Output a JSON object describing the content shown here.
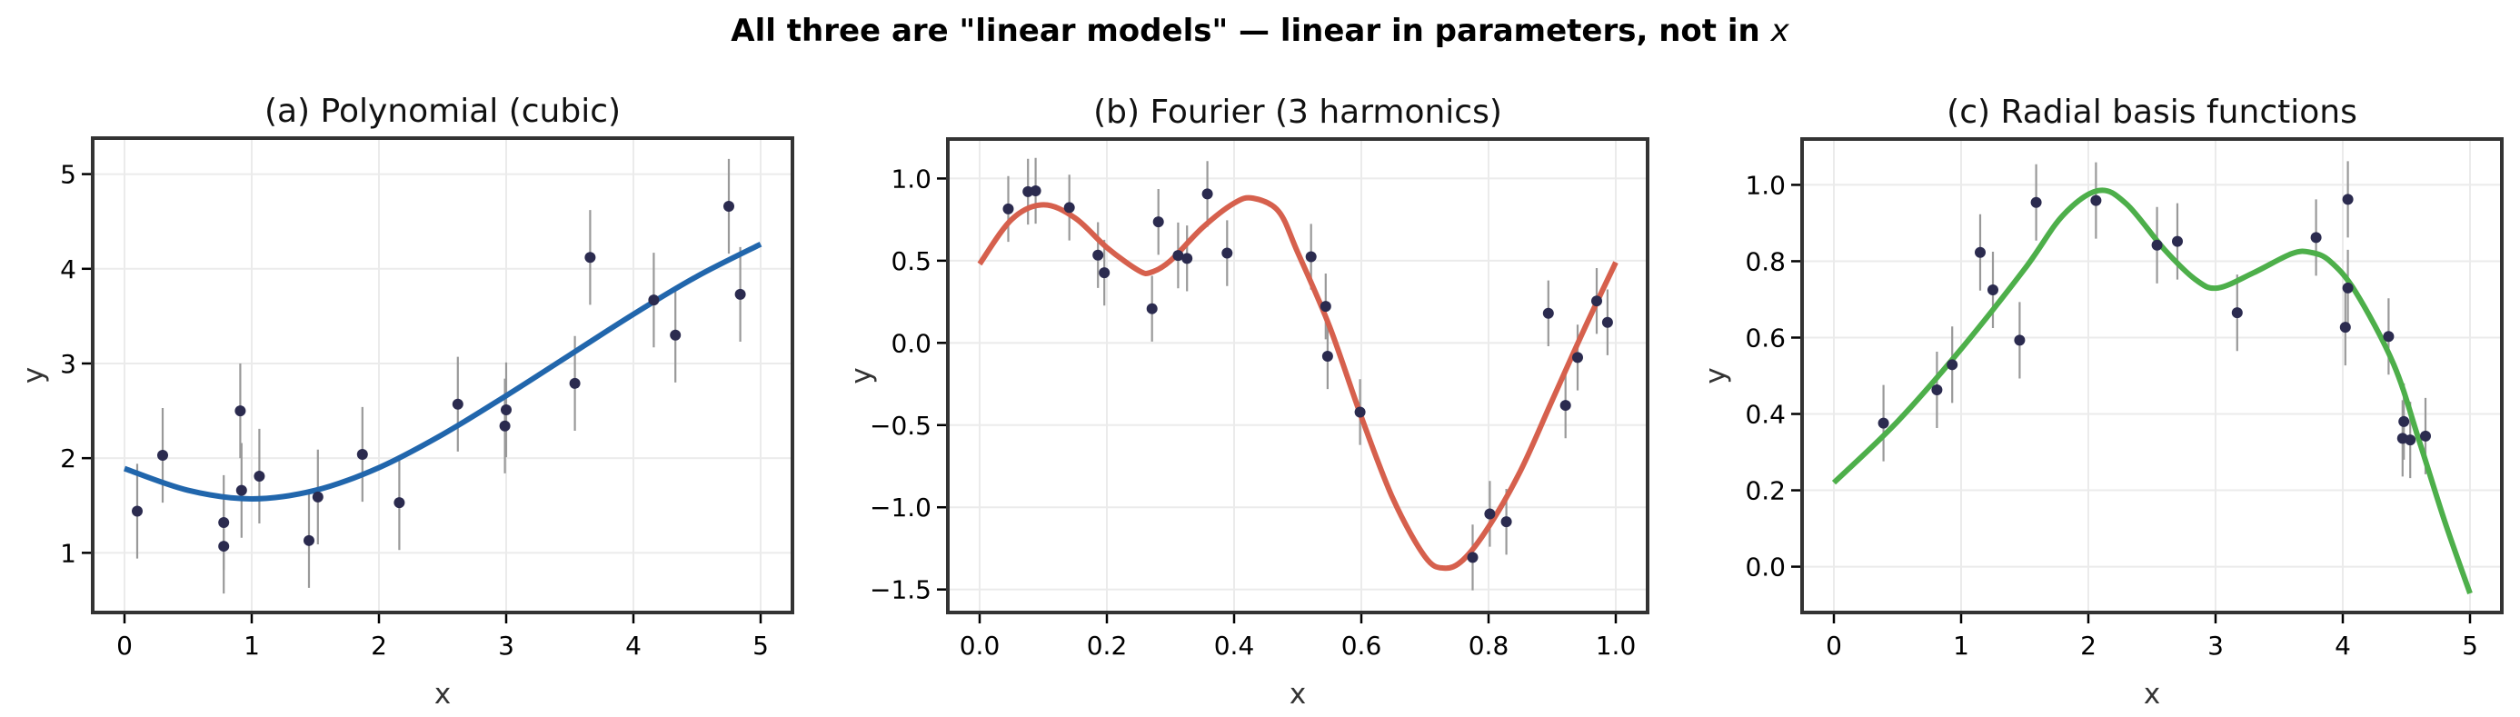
{
  "figure": {
    "suptitle_main": "All three are \"linear models\" — linear in parameters, not in ",
    "suptitle_var": "x",
    "point_color": "#2b2b4f",
    "errorbar_color": "#999999",
    "frame_color": "#333333",
    "grid_color": "#ebebeb"
  },
  "chart_data": [
    {
      "type": "scatter",
      "title": "(a) Polynomial (cubic)",
      "xlabel": "x",
      "ylabel": "y",
      "xlim": [
        -0.25,
        5.25
      ],
      "ylim": [
        0.37,
        5.38
      ],
      "xticks": [
        0,
        1,
        2,
        3,
        4,
        5
      ],
      "xticklabels": [
        "0",
        "1",
        "2",
        "3",
        "4",
        "5"
      ],
      "yticks": [
        1,
        2,
        3,
        4,
        5
      ],
      "yticklabels": [
        "1",
        "2",
        "3",
        "4",
        "5"
      ],
      "grid": true,
      "line_color": "#2166ac",
      "error": 0.5,
      "points": {
        "x": [
          0.1,
          0.3,
          0.78,
          0.78,
          0.91,
          0.92,
          1.06,
          1.45,
          1.52,
          1.87,
          2.16,
          2.62,
          2.99,
          3.0,
          3.54,
          3.66,
          4.16,
          4.33,
          4.75,
          4.84
        ],
        "y": [
          1.44,
          2.03,
          1.32,
          1.07,
          2.5,
          1.66,
          1.81,
          1.13,
          1.59,
          2.04,
          1.53,
          2.57,
          2.34,
          2.51,
          2.79,
          4.12,
          3.67,
          3.3,
          4.66,
          3.73
        ]
      },
      "fit_curve": {
        "x": [
          0,
          0.5,
          1,
          1.5,
          2,
          2.5,
          3,
          3.5,
          4,
          4.5,
          5
        ],
        "y": [
          1.89,
          1.66,
          1.57,
          1.66,
          1.9,
          2.25,
          2.66,
          3.09,
          3.52,
          3.92,
          4.26
        ]
      }
    },
    {
      "type": "scatter",
      "title": "(b) Fourier (3 harmonics)",
      "xlabel": "x",
      "ylabel": "y",
      "xlim": [
        -0.05,
        1.05
      ],
      "ylim": [
        -1.64,
        1.24
      ],
      "xticks": [
        0.0,
        0.2,
        0.4,
        0.6,
        0.8,
        1.0
      ],
      "xticklabels": [
        "0.0",
        "0.2",
        "0.4",
        "0.6",
        "0.8",
        "1.0"
      ],
      "yticks": [
        1.0,
        0.5,
        0.0,
        -0.5,
        -1.0,
        -1.5
      ],
      "yticklabels": [
        "1.0",
        "0.5",
        "0.0",
        "−0.5",
        "−1.0",
        "−1.5"
      ],
      "grid": true,
      "line_color": "#d6604d",
      "error": 0.2,
      "points": {
        "x": [
          0.045,
          0.076,
          0.088,
          0.141,
          0.186,
          0.196,
          0.271,
          0.281,
          0.312,
          0.326,
          0.358,
          0.389,
          0.521,
          0.544,
          0.547,
          0.598,
          0.775,
          0.802,
          0.828,
          0.894,
          0.921,
          0.94,
          0.97,
          0.987
        ],
        "y": [
          0.815,
          0.92,
          0.925,
          0.823,
          0.534,
          0.427,
          0.208,
          0.736,
          0.532,
          0.514,
          0.906,
          0.546,
          0.524,
          0.222,
          -0.081,
          -0.421,
          -1.305,
          -1.04,
          -1.088,
          0.18,
          -0.38,
          -0.089,
          0.255,
          0.125
        ]
      },
      "fit_curve": {
        "x": [
          0,
          0.05,
          0.1,
          0.15,
          0.2,
          0.25,
          0.27,
          0.3,
          0.35,
          0.4,
          0.43,
          0.47,
          0.5,
          0.55,
          0.6,
          0.65,
          0.7,
          0.73,
          0.76,
          0.8,
          0.85,
          0.9,
          0.95,
          1.0
        ],
        "y": [
          0.48,
          0.75,
          0.84,
          0.76,
          0.58,
          0.44,
          0.43,
          0.5,
          0.7,
          0.85,
          0.88,
          0.8,
          0.55,
          0.1,
          -0.45,
          -0.95,
          -1.3,
          -1.37,
          -1.32,
          -1.12,
          -0.78,
          -0.35,
          0.08,
          0.49
        ]
      }
    },
    {
      "type": "scatter",
      "title": "(c) Radial basis functions",
      "xlabel": "x",
      "ylabel": "y",
      "xlim": [
        -0.25,
        5.25
      ],
      "ylim": [
        -0.12,
        1.12
      ],
      "xticks": [
        0,
        1,
        2,
        3,
        4,
        5
      ],
      "xticklabels": [
        "0",
        "1",
        "2",
        "3",
        "4",
        "5"
      ],
      "yticks": [
        0.0,
        0.2,
        0.4,
        0.6,
        0.8,
        1.0
      ],
      "yticklabels": [
        "0.0",
        "0.2",
        "0.4",
        "0.6",
        "0.8",
        "1.0"
      ],
      "grid": true,
      "line_color": "#4daf4a",
      "error": 0.1,
      "points": {
        "x": [
          0.39,
          0.81,
          0.93,
          1.15,
          1.25,
          1.46,
          1.59,
          2.06,
          2.54,
          2.7,
          3.17,
          3.79,
          4.02,
          4.04,
          4.04,
          4.36,
          4.47,
          4.48,
          4.53,
          4.65
        ],
        "y": [
          0.376,
          0.463,
          0.529,
          0.823,
          0.725,
          0.593,
          0.954,
          0.959,
          0.842,
          0.852,
          0.665,
          0.862,
          0.627,
          0.73,
          0.962,
          0.603,
          0.336,
          0.38,
          0.332,
          0.342
        ]
      },
      "fit_curve": {
        "x": [
          0,
          0.5,
          1,
          1.5,
          1.8,
          2.08,
          2.3,
          2.6,
          2.85,
          3.02,
          3.3,
          3.6,
          3.75,
          3.9,
          4.1,
          4.4,
          4.6,
          4.8,
          5
        ],
        "y": [
          0.22,
          0.38,
          0.57,
          0.78,
          0.92,
          0.985,
          0.95,
          0.83,
          0.75,
          0.73,
          0.77,
          0.82,
          0.823,
          0.8,
          0.72,
          0.53,
          0.33,
          0.12,
          -0.07
        ]
      }
    }
  ]
}
